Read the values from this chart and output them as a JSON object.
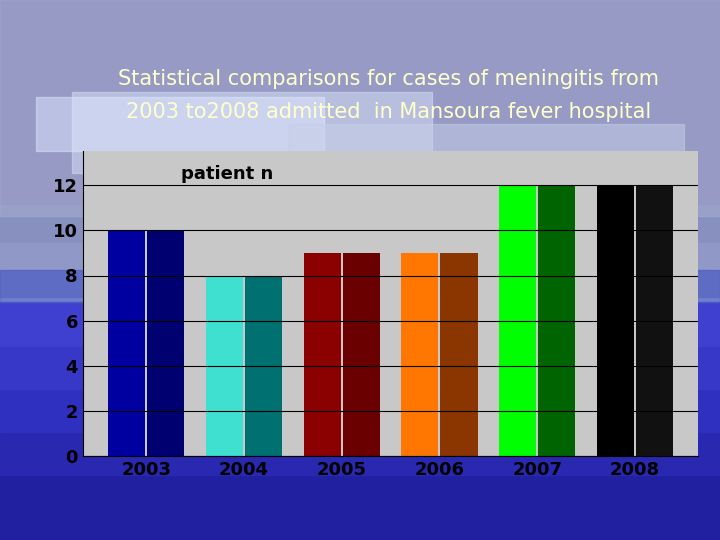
{
  "years": [
    "2003",
    "2004",
    "2005",
    "2006",
    "2007",
    "2008"
  ],
  "bar1_values": [
    10,
    8,
    9,
    9,
    12,
    12
  ],
  "bar2_values": [
    10,
    8,
    9,
    9,
    12,
    12
  ],
  "bar1_colors": [
    "#0000A0",
    "#40E0D0",
    "#8B0000",
    "#FF7700",
    "#00FF00",
    "#000000"
  ],
  "bar2_colors": [
    "#000070",
    "#007070",
    "#6B0000",
    "#8B3500",
    "#006400",
    "#111111"
  ],
  "title_line1": "Statistical comparisons for cases of meningitis from",
  "title_line2": "2003 to2008 admitted  in Mansoura fever hospital",
  "title_color": "#FFFFCC",
  "ylabel": "patient n",
  "yticks": [
    0,
    2,
    4,
    6,
    8,
    10,
    12
  ],
  "ylim": [
    0,
    13.5
  ],
  "plot_bg_color": "#C8C8C8",
  "bar_width": 0.38,
  "title_fontsize": 15,
  "tick_fontsize": 13
}
